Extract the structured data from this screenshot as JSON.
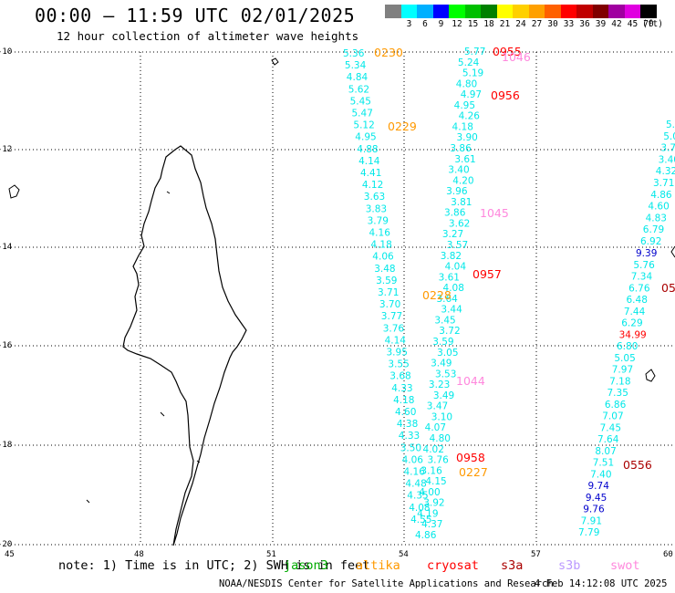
{
  "header": {
    "title": "00:00 – 11:59 UTC 02/01/2025",
    "subtitle": "12 hour collection of altimeter wave heights"
  },
  "legend": {
    "unit": "(ft)",
    "items": [
      {
        "label": "",
        "color": "#808080"
      },
      {
        "label": "3",
        "color": "#00ffff"
      },
      {
        "label": "6",
        "color": "#00b0ff"
      },
      {
        "label": "9",
        "color": "#0000ff"
      },
      {
        "label": "12",
        "color": "#00ff00"
      },
      {
        "label": "15",
        "color": "#00c000"
      },
      {
        "label": "18",
        "color": "#008000"
      },
      {
        "label": "21",
        "color": "#ffff00"
      },
      {
        "label": "24",
        "color": "#ffd000"
      },
      {
        "label": "27",
        "color": "#ffa000"
      },
      {
        "label": "30",
        "color": "#ff6000"
      },
      {
        "label": "33",
        "color": "#ff0000"
      },
      {
        "label": "36",
        "color": "#c00000"
      },
      {
        "label": "39",
        "color": "#800000"
      },
      {
        "label": "42",
        "color": "#a000a0"
      },
      {
        "label": "45",
        "color": "#e000e0"
      },
      {
        "label": "70",
        "color": "#000000"
      }
    ]
  },
  "axes": {
    "lon_labels": [
      "45",
      "48",
      "51",
      "54",
      "57",
      "60"
    ],
    "lat_labels": [
      "-10",
      "-12",
      "-14",
      "-16",
      "-18",
      "-20"
    ]
  },
  "colors": {
    "cyan": "#00e8e8",
    "orange": "#ff9900",
    "red": "#ff0000",
    "darkred": "#aa0000",
    "pink": "#ff88dd",
    "navy": "#0000cc",
    "darkgreen": "#00aa00",
    "lavender": "#bb99ff"
  },
  "tracks": {
    "track_a": [
      "5.36",
      "5.34",
      "4.84",
      "5.62",
      "5.45",
      "5.47",
      "5.12",
      "4.95",
      "4.88",
      "4.14",
      "4.41",
      "4.12",
      "3.63",
      "3.83",
      "3.79",
      "4.16",
      "4.18",
      "4.06",
      "3.48",
      "3.59",
      "3.71",
      "3.70",
      "3.77",
      "3.76",
      "4.14",
      "3.95",
      "3.55",
      "3.68",
      "4.33",
      "4.18",
      "4.60",
      "4.38",
      "4.33",
      "3.50",
      "4.06",
      "4.16",
      "4.48",
      "4.35",
      "4.08",
      "4.55"
    ],
    "track_b": [
      "5.77",
      "5.24",
      "5.19",
      "4.80",
      "4.97",
      "4.95",
      "4.26",
      "4.18",
      "3.90",
      "3.86",
      "3.61",
      "3.40",
      "4.20",
      "3.96",
      "3.81",
      "3.86",
      "3.62",
      "3.27",
      "3.57",
      "3.82",
      "4.04",
      "3.61",
      "4.08",
      "3.64",
      "3.44",
      "3.45",
      "3.72",
      "3.59",
      "3.05",
      "3.49",
      "3.53",
      "3.23",
      "3.49",
      "3.47",
      "3.10",
      "4.07",
      "4.80",
      "4.02",
      "3.76",
      "3.16",
      "4.15",
      "4.00",
      "3.92",
      "4.19",
      "4.37",
      "4.86"
    ],
    "track_c": [
      "9.39",
      "5.76",
      "7.34",
      "6.76",
      "6.48",
      "7.44",
      "6.29",
      "34.99",
      "6.80",
      "5.05",
      "7.97",
      "7.18",
      "7.35",
      "6.86",
      "7.07",
      "7.45",
      "7.64",
      "8.07",
      "7.51",
      "7.40",
      "9.74",
      "9.45",
      "9.76",
      "7.91",
      "7.79"
    ],
    "track_c_colors": [
      "navy",
      "cyan",
      "cyan",
      "cyan",
      "cyan",
      "cyan",
      "cyan",
      "red",
      "cyan",
      "cyan",
      "cyan",
      "cyan",
      "cyan",
      "cyan",
      "cyan",
      "cyan",
      "cyan",
      "cyan",
      "cyan",
      "cyan",
      "navy",
      "navy",
      "navy",
      "cyan",
      "cyan"
    ],
    "track_d": [
      "5.",
      "5.0",
      "3.7",
      "3.40",
      "4.32",
      "3.71",
      "4.86",
      "4.60",
      "4.83",
      "6.79",
      "6.92"
    ]
  },
  "time_labels": [
    {
      "text": "0230",
      "color": "orange"
    },
    {
      "text": "0229",
      "color": "orange"
    },
    {
      "text": "0228",
      "color": "orange"
    },
    {
      "text": "0227",
      "color": "orange"
    },
    {
      "text": "0955",
      "color": "red"
    },
    {
      "text": "0956",
      "color": "red"
    },
    {
      "text": "0957",
      "color": "red"
    },
    {
      "text": "0958",
      "color": "red"
    },
    {
      "text": "1046",
      "color": "pink"
    },
    {
      "text": "1045",
      "color": "pink"
    },
    {
      "text": "1044",
      "color": "pink"
    },
    {
      "text": "0556",
      "color": "darkred"
    },
    {
      "text": "05",
      "color": "darkred"
    }
  ],
  "footer": {
    "note": "note: 1) Time is in UTC; 2) SWH is in feet",
    "satellites": [
      {
        "name": "jason3",
        "color": "#00aa00"
      },
      {
        "name": "altika",
        "color": "#ff9900"
      },
      {
        "name": "cryosat",
        "color": "#ff0000"
      },
      {
        "name": "s3a",
        "color": "#aa0000"
      },
      {
        "name": "s3b",
        "color": "#bb99ff"
      },
      {
        "name": "swot",
        "color": "#ff88dd"
      }
    ],
    "credit": "NOAA/NESDIS Center for Satellite Applications and Research",
    "generated": "4 Feb 14:12:08 UTC 2025"
  }
}
